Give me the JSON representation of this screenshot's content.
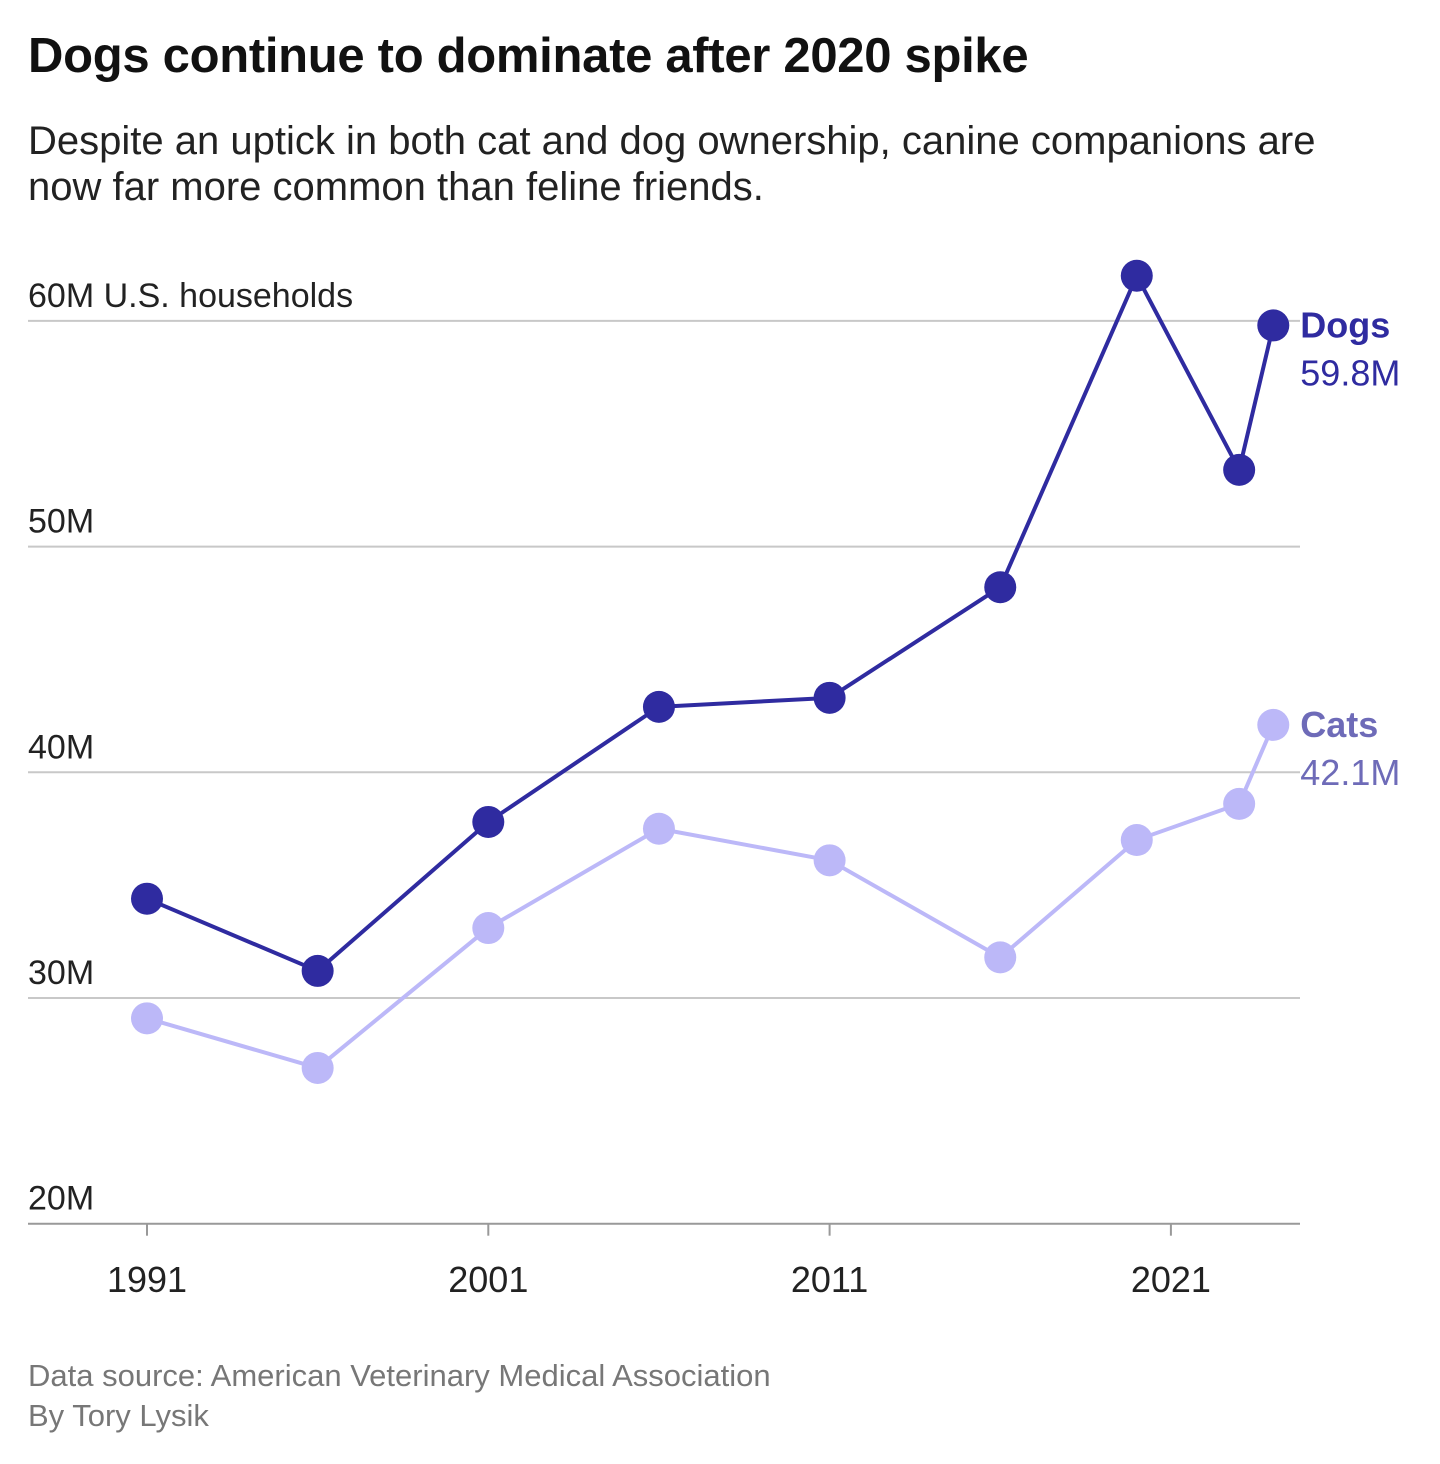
{
  "chart_data": {
    "type": "line",
    "title": "Dogs continue to dominate after 2020 spike",
    "subtitle": "Despite an uptick in both cat and dog ownership, canine companions are now far more common than feline friends.",
    "ylabel": "U.S. households",
    "ylim": [
      20,
      60
    ],
    "yticks": [
      20,
      30,
      40,
      50,
      60
    ],
    "ytick_labels": [
      "20M",
      "30M",
      "40M",
      "50M",
      "60M U.S. households"
    ],
    "xlim": [
      1987.5,
      2025.5
    ],
    "xticks": [
      1991,
      2001,
      2011,
      2021
    ],
    "xtick_labels": [
      "1991",
      "2001",
      "2011",
      "2021"
    ],
    "grid": true,
    "x": [
      1991,
      1996,
      2001,
      2006,
      2011,
      2016,
      2020,
      2023,
      2024
    ],
    "series": [
      {
        "name": "Dogs",
        "end_label": "59.8M",
        "color": "#2f2ba0",
        "label_color": "#2f2ba0",
        "values": [
          34.4,
          31.2,
          37.8,
          42.9,
          43.3,
          48.2,
          62.0,
          53.4,
          59.8
        ]
      },
      {
        "name": "Cats",
        "end_label": "42.1M",
        "color": "#bcb8f8",
        "label_color": "#6e6bb8",
        "values": [
          29.1,
          26.9,
          33.1,
          37.5,
          36.1,
          31.8,
          37.0,
          38.6,
          42.1
        ]
      }
    ]
  },
  "footer": {
    "source": "Data source: American Veterinary Medical Association",
    "byline": "By Tory Lysik"
  }
}
